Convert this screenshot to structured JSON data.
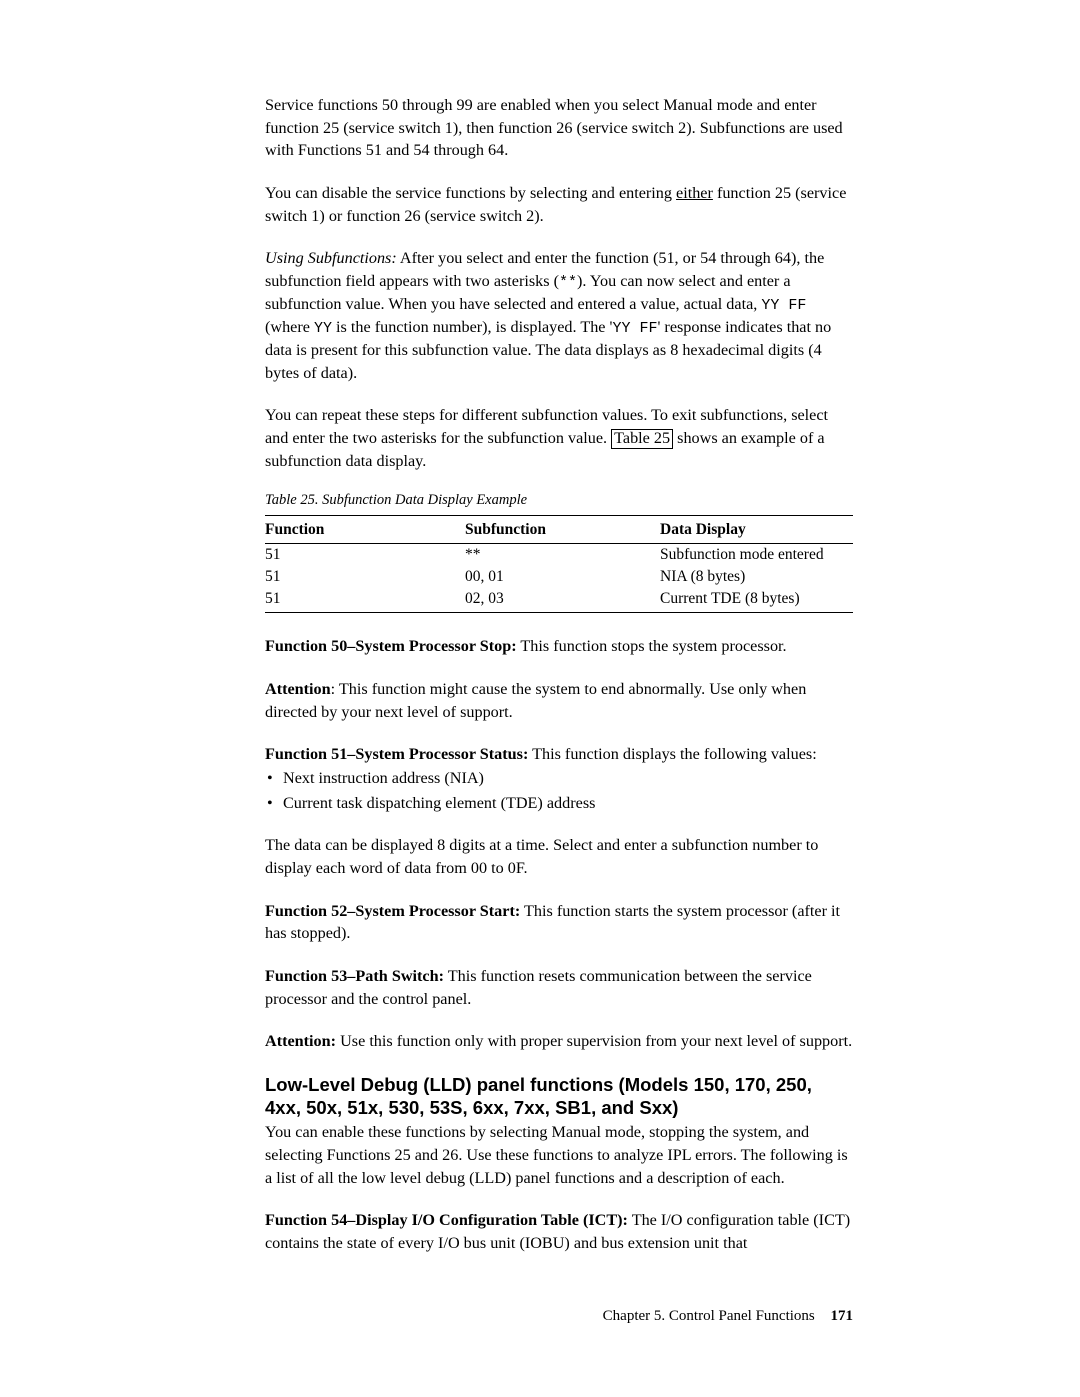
{
  "para1": {
    "text": "Service functions 50 through 99 are enabled when you select Manual mode and enter function 25 (service switch 1), then function 26 (service switch 2). Subfunctions are used with Functions 51 and 54 through 64."
  },
  "para2": {
    "pre": "You can disable the service functions by selecting and entering ",
    "underlined": "either",
    "post": " function 25 (service switch 1) or function 26 (service switch 2)."
  },
  "para3": {
    "lead": "Using Subfunctions:",
    "seg1": "   After you select and enter the function (51, or 54 through 64), the subfunction field appears with two asterisks (",
    "code1": "**",
    "seg2": "). You can now select and enter a subfunction value. When you have selected and entered a value, actual data, ",
    "code2": "YY FF",
    "seg3": " (where ",
    "code3": "YY",
    "seg4": " is the function number), is displayed. The '",
    "code4": "YY FF",
    "seg5": "' response indicates that no data is present for this subfunction value. The data displays as 8 hexadecimal digits (4 bytes of data)."
  },
  "para4": {
    "pre": "You can repeat these steps for different subfunction values. To exit subfunctions, select and enter the two asterisks for the subfunction value. ",
    "link": "Table 25",
    "post": " shows an example of a subfunction data display."
  },
  "table": {
    "caption": "Table 25. Subfunction Data Display Example",
    "headers": {
      "c1": "Function",
      "c2": "Subfunction",
      "c3": "Data Display"
    },
    "rows": [
      {
        "c1": "51",
        "c2": "**",
        "c3": "Subfunction mode entered"
      },
      {
        "c1": "51",
        "c2": "00, 01",
        "c3": "NIA (8 bytes)"
      },
      {
        "c1": "51",
        "c2": "02, 03",
        "c3": "Current TDE (8 bytes)"
      }
    ]
  },
  "func50": {
    "label": "Function 50–System Processor Stop:",
    "text": "   This function stops the system processor."
  },
  "attention1": {
    "label": "Attention",
    "text": ": This function might cause the system to end abnormally. Use only when directed by your next level of support."
  },
  "func51": {
    "label": "Function 51–System Processor Status:",
    "text": "   This function displays the following values:"
  },
  "bullets": {
    "b1": "Next instruction address (NIA)",
    "b2": "Current task dispatching element (TDE) address"
  },
  "para_after_bullets": "The data can be displayed 8 digits at a time. Select and enter a subfunction number to display each word of data from 00 to 0F.",
  "func52": {
    "label": "Function 52–System Processor Start:",
    "text": "   This function starts the system processor (after it has stopped)."
  },
  "func53": {
    "label": "Function 53–Path Switch:",
    "text": "   This function resets communication between the service processor and the control panel."
  },
  "attention2": {
    "label": "Attention:",
    "text": " Use this function only with proper supervision from your next level of support."
  },
  "section_heading": "Low-Level Debug (LLD) panel functions (Models 150, 170, 250, 4xx, 50x, 51x, 530, 53S, 6xx, 7xx, SB1, and Sxx)",
  "section_para": "You can enable these functions by selecting Manual mode, stopping the system, and selecting Functions 25 and 26. Use these functions to analyze IPL errors. The following is a list of all the low level debug (LLD) panel functions and a description of each.",
  "func54": {
    "label": "Function 54–Display I/O Configuration Table (ICT):",
    "text": "   The I/O configuration table (ICT) contains the state of every I/O bus unit (IOBU) and bus extension unit that"
  },
  "footer": {
    "chapter": "Chapter 5. Control Panel Functions",
    "page": "171"
  }
}
